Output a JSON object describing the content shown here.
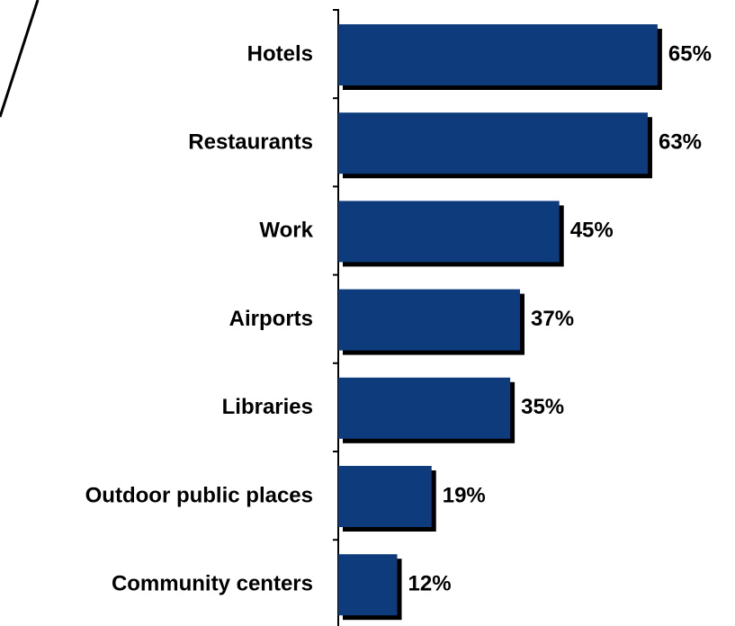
{
  "chart_data": {
    "type": "bar",
    "orientation": "horizontal",
    "categories": [
      "Hotels",
      "Restaurants",
      "Work",
      "Airports",
      "Libraries",
      "Outdoor public places",
      "Community centers"
    ],
    "values": [
      65,
      63,
      45,
      37,
      35,
      19,
      12
    ],
    "value_labels": [
      "65%",
      "63%",
      "45%",
      "37%",
      "35%",
      "19%",
      "12%"
    ],
    "color": "#0d3b7c"
  }
}
